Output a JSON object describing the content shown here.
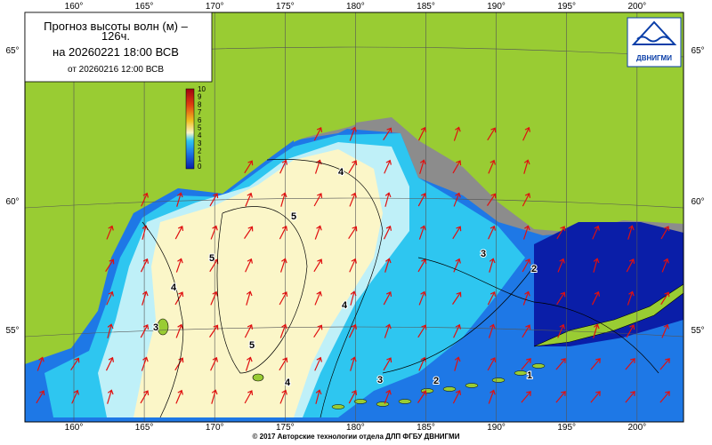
{
  "header": {
    "title_line1": "Прогноз высоты волн (м) –",
    "title_line2": "126ч.",
    "valid_time": "на 20260221 18:00 ВСВ",
    "issued_time": "от 20260216 12:00 ВСВ"
  },
  "logo": {
    "text": "ДВНИГМИ"
  },
  "colorbar": {
    "ticks": [
      10,
      9,
      8,
      7,
      6,
      5,
      4,
      3,
      2,
      1,
      0
    ]
  },
  "longitudes": [
    "160°",
    "165°",
    "170°",
    "175°",
    "180°",
    "185°",
    "190°",
    "195°",
    "200°"
  ],
  "latitudes": [
    "65°",
    "60°",
    "55°"
  ],
  "contour_labels": [
    4,
    4,
    4,
    4,
    5,
    5,
    5,
    3,
    3,
    3,
    2,
    2,
    1
  ],
  "footer": "© 2017 Авторские технологии отдела ДЛП ФГБУ ДВНИГМИ"
}
